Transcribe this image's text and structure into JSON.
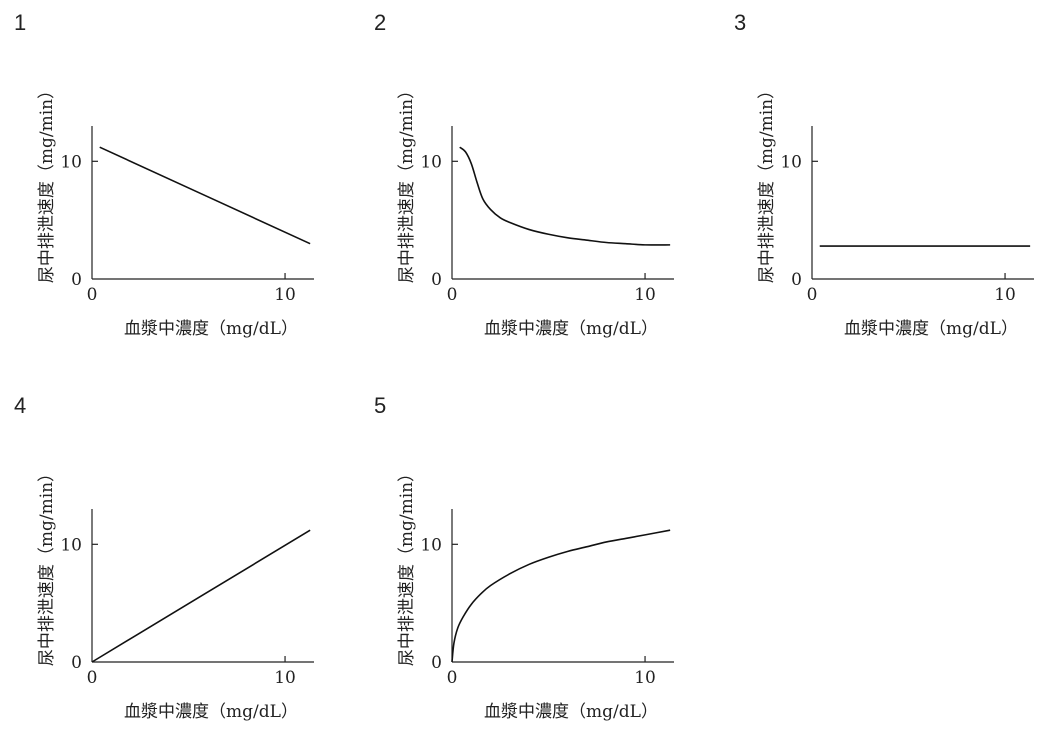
{
  "chart_data": [
    {
      "type": "line",
      "panel_label": "1",
      "xlabel": "血漿中濃度（mg/dL）",
      "ylabel": "尿中排泄速度（mg/min）",
      "x_ticks": [
        "0",
        "10"
      ],
      "y_ticks": [
        "0",
        "10"
      ],
      "xlim": [
        0,
        11.5
      ],
      "ylim": [
        0,
        13
      ],
      "series": [
        {
          "x": [
            0.4,
            11.3
          ],
          "y": [
            11.2,
            3.0
          ]
        }
      ]
    },
    {
      "type": "line",
      "panel_label": "2",
      "xlabel": "血漿中濃度（mg/dL）",
      "ylabel": "尿中排泄速度（mg/min）",
      "x_ticks": [
        "0",
        "10"
      ],
      "y_ticks": [
        "0",
        "10"
      ],
      "xlim": [
        0,
        11.5
      ],
      "ylim": [
        0,
        13
      ],
      "series": [
        {
          "x": [
            0.4,
            0.7,
            1.0,
            1.3,
            1.6,
            2.0,
            2.5,
            3.0,
            4.0,
            5.0,
            6.0,
            7.0,
            8.0,
            9.0,
            10.0,
            11.3
          ],
          "y": [
            11.2,
            10.8,
            9.8,
            8.2,
            6.8,
            5.9,
            5.2,
            4.8,
            4.2,
            3.8,
            3.5,
            3.3,
            3.1,
            3.0,
            2.9,
            2.9
          ]
        }
      ]
    },
    {
      "type": "line",
      "panel_label": "3",
      "xlabel": "血漿中濃度（mg/dL）",
      "ylabel": "尿中排泄速度（mg/min）",
      "x_ticks": [
        "0",
        "10"
      ],
      "y_ticks": [
        "0",
        "10"
      ],
      "xlim": [
        0,
        11.5
      ],
      "ylim": [
        0,
        13
      ],
      "series": [
        {
          "x": [
            0.4,
            11.3
          ],
          "y": [
            2.8,
            2.8
          ]
        }
      ]
    },
    {
      "type": "line",
      "panel_label": "4",
      "xlabel": "血漿中濃度（mg/dL）",
      "ylabel": "尿中排泄速度（mg/min）",
      "x_ticks": [
        "0",
        "10"
      ],
      "y_ticks": [
        "0",
        "10"
      ],
      "xlim": [
        0,
        11.5
      ],
      "ylim": [
        0,
        13
      ],
      "series": [
        {
          "x": [
            0,
            11.3
          ],
          "y": [
            0,
            11.2
          ]
        }
      ]
    },
    {
      "type": "line",
      "panel_label": "5",
      "xlabel": "血漿中濃度（mg/dL）",
      "ylabel": "尿中排泄速度（mg/min）",
      "x_ticks": [
        "0",
        "10"
      ],
      "y_ticks": [
        "0",
        "10"
      ],
      "xlim": [
        0,
        11.5
      ],
      "ylim": [
        0,
        13
      ],
      "series": [
        {
          "x": [
            0,
            0.1,
            0.3,
            0.6,
            1.0,
            1.5,
            2.0,
            3.0,
            4.0,
            5.0,
            6.0,
            7.0,
            8.0,
            9.0,
            10.0,
            11.3
          ],
          "y": [
            0,
            1.6,
            2.9,
            3.9,
            4.9,
            5.8,
            6.5,
            7.5,
            8.3,
            8.9,
            9.4,
            9.8,
            10.2,
            10.5,
            10.8,
            11.2
          ]
        }
      ]
    }
  ]
}
